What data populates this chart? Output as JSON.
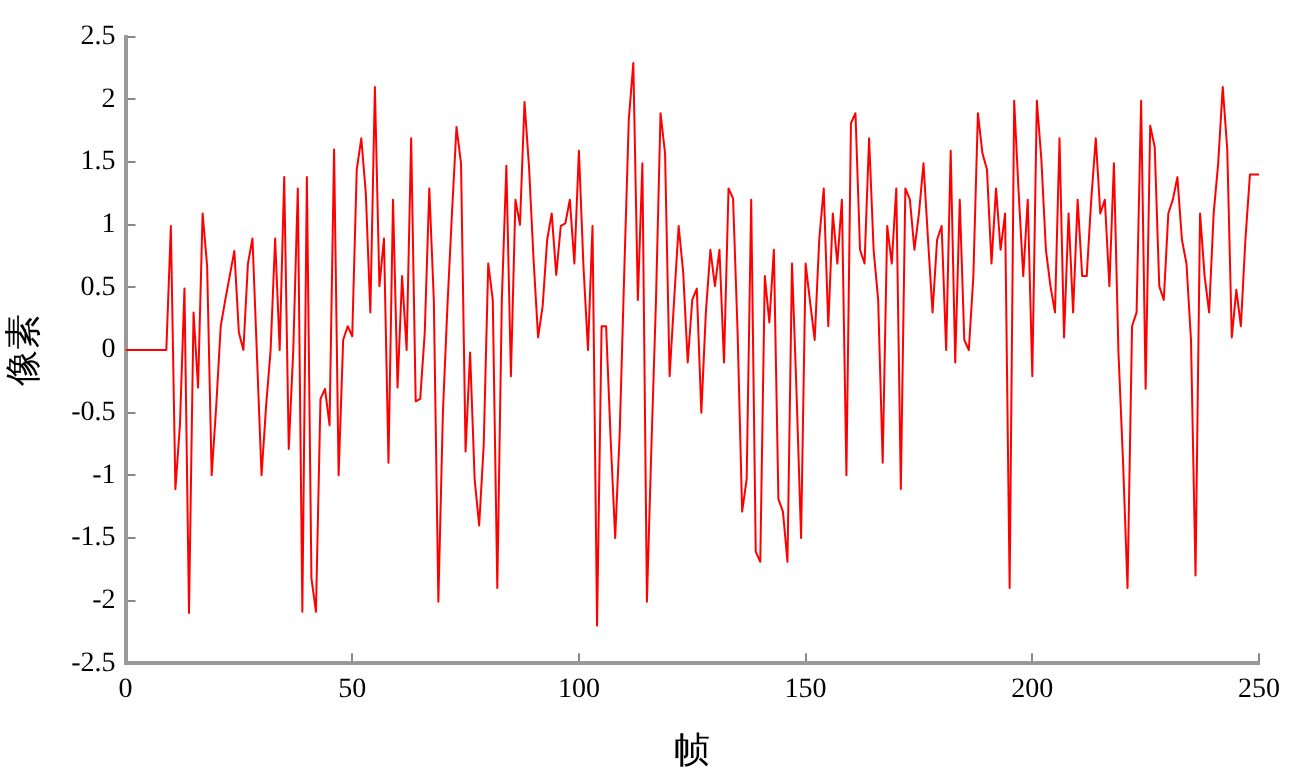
{
  "chart_data": {
    "type": "line",
    "xlabel": "帧",
    "ylabel": "像素",
    "xlim": [
      0,
      250
    ],
    "xticks": [
      0,
      50,
      100,
      150,
      200,
      250
    ],
    "ylim": [
      -2.5,
      2.5
    ],
    "yticks": [
      -2.5,
      -2,
      -1.5,
      -1,
      -0.5,
      0,
      0.5,
      1,
      1.5,
      2,
      2.5
    ],
    "grid": false,
    "legend": false,
    "marker": "none",
    "line_style": "solid",
    "series": [
      {
        "color": "#ff0000",
        "x": [
          0,
          9,
          10,
          11,
          12,
          13,
          14,
          15,
          16,
          17,
          18,
          19,
          20,
          21,
          22,
          24,
          25,
          26,
          27,
          28,
          30,
          31,
          32,
          33,
          34,
          35,
          36,
          37,
          38,
          39,
          40,
          41,
          42,
          43,
          44,
          45,
          46,
          47,
          48,
          49,
          50,
          51,
          52,
          53,
          54,
          55,
          56,
          57,
          58,
          59,
          60,
          61,
          62,
          63,
          64,
          65,
          66,
          67,
          68,
          69,
          70,
          71,
          72,
          73,
          74,
          75,
          76,
          77,
          78,
          79,
          80,
          81,
          82,
          83,
          84,
          85,
          86,
          87,
          88,
          89,
          90,
          91,
          92,
          93,
          94,
          95,
          96,
          97,
          98,
          99,
          100,
          101,
          102,
          103,
          104,
          105,
          106,
          107,
          108,
          109,
          110,
          111,
          112,
          113,
          114,
          115,
          116,
          117,
          118,
          119,
          120,
          121,
          122,
          123,
          124,
          125,
          126,
          127,
          128,
          129,
          130,
          131,
          132,
          133,
          134,
          135,
          136,
          137,
          138,
          139,
          140,
          141,
          142,
          143,
          144,
          145,
          146,
          147,
          148,
          149,
          150,
          151,
          152,
          153,
          154,
          155,
          156,
          157,
          158,
          159,
          160,
          161,
          162,
          163,
          164,
          165,
          166,
          167,
          168,
          169,
          170,
          171,
          172,
          173,
          174,
          175,
          176,
          177,
          178,
          179,
          180,
          181,
          182,
          183,
          184,
          185,
          186,
          187,
          188,
          189,
          190,
          191,
          192,
          193,
          194,
          195,
          196,
          197,
          198,
          199,
          200,
          201,
          202,
          203,
          204,
          205,
          206,
          207,
          208,
          209,
          210,
          211,
          212,
          213,
          214,
          215,
          216,
          217,
          218,
          219,
          220,
          221,
          222,
          223,
          224,
          225,
          226,
          227,
          228,
          229,
          230,
          231,
          232,
          233,
          234,
          235,
          236,
          237,
          238,
          239,
          240,
          241,
          242,
          243,
          244,
          245,
          246,
          247,
          248,
          250
        ],
        "values": [
          0,
          0,
          0.99,
          -1.11,
          -0.6,
          0.49,
          -2.1,
          0.3,
          -0.3,
          1.09,
          0.67,
          -1,
          -0.45,
          0.19,
          0.4,
          0.79,
          0.14,
          0,
          0.69,
          0.89,
          -1,
          -0.45,
          0,
          0.89,
          0,
          1.38,
          -0.79,
          0,
          1.29,
          -2.09,
          1.38,
          -1.82,
          -2.09,
          -0.39,
          -0.31,
          -0.6,
          1.6,
          -1,
          0.08,
          0.19,
          0.11,
          1.44,
          1.69,
          1.25,
          0.3,
          2.1,
          0.51,
          0.89,
          -0.9,
          1.2,
          -0.3,
          0.59,
          0,
          1.69,
          -0.41,
          -0.39,
          0.14,
          1.29,
          0.4,
          -2.01,
          -0.5,
          0.35,
          1.09,
          1.78,
          1.49,
          -0.81,
          -0.02,
          -1.03,
          -1.4,
          -0.76,
          0.69,
          0.4,
          -1.9,
          0.4,
          1.47,
          -0.21,
          1.2,
          1,
          1.98,
          1.46,
          0.72,
          0.1,
          0.35,
          0.88,
          1.09,
          0.6,
          0.99,
          1.01,
          1.2,
          0.69,
          1.59,
          0.67,
          0,
          0.99,
          -2.2,
          0.19,
          0.19,
          -0.71,
          -1.5,
          -0.66,
          0.62,
          1.84,
          2.29,
          0.4,
          1.49,
          -2.01,
          -0.76,
          0.4,
          1.89,
          1.57,
          -0.21,
          0.4,
          0.99,
          0.62,
          -0.1,
          0.4,
          0.49,
          -0.5,
          0.3,
          0.8,
          0.51,
          0.8,
          -0.1,
          1.29,
          1.21,
          0.14,
          -1.29,
          -1.03,
          1.2,
          -1.61,
          -1.69,
          0.59,
          0.22,
          0.8,
          -1.19,
          -1.29,
          -1.69,
          0.69,
          -0.34,
          -1.5,
          0.69,
          0.38,
          0.08,
          0.88,
          1.29,
          0.19,
          1.09,
          0.69,
          1.2,
          -1,
          1.81,
          1.89,
          0.8,
          0.69,
          1.69,
          0.8,
          0.4,
          -0.9,
          0.99,
          0.69,
          1.29,
          -1.11,
          1.29,
          1.2,
          0.8,
          1.09,
          1.49,
          0.88,
          0.3,
          0.88,
          0.99,
          0,
          1.59,
          -0.1,
          1.2,
          0.08,
          0,
          0.59,
          1.89,
          1.57,
          1.44,
          0.69,
          1.29,
          0.8,
          1.09,
          -1.9,
          1.99,
          1.25,
          0.59,
          1.2,
          -0.21,
          1.99,
          1.52,
          0.8,
          0.51,
          0.3,
          1.69,
          0.1,
          1.09,
          0.3,
          1.2,
          0.59,
          0.59,
          1.2,
          1.69,
          1.09,
          1.2,
          0.51,
          1.49,
          -0.02,
          -0.88,
          -1.9,
          0.19,
          0.3,
          1.99,
          -0.31,
          1.79,
          1.62,
          0.51,
          0.4,
          1.09,
          1.2,
          1.38,
          0.88,
          0.69,
          0.08,
          -1.8,
          1.09,
          0.59,
          0.3,
          1.09,
          1.49,
          2.1,
          1.6,
          0.1,
          0.48,
          0.19,
          0.88,
          1.4,
          1.4
        ]
      }
    ]
  }
}
